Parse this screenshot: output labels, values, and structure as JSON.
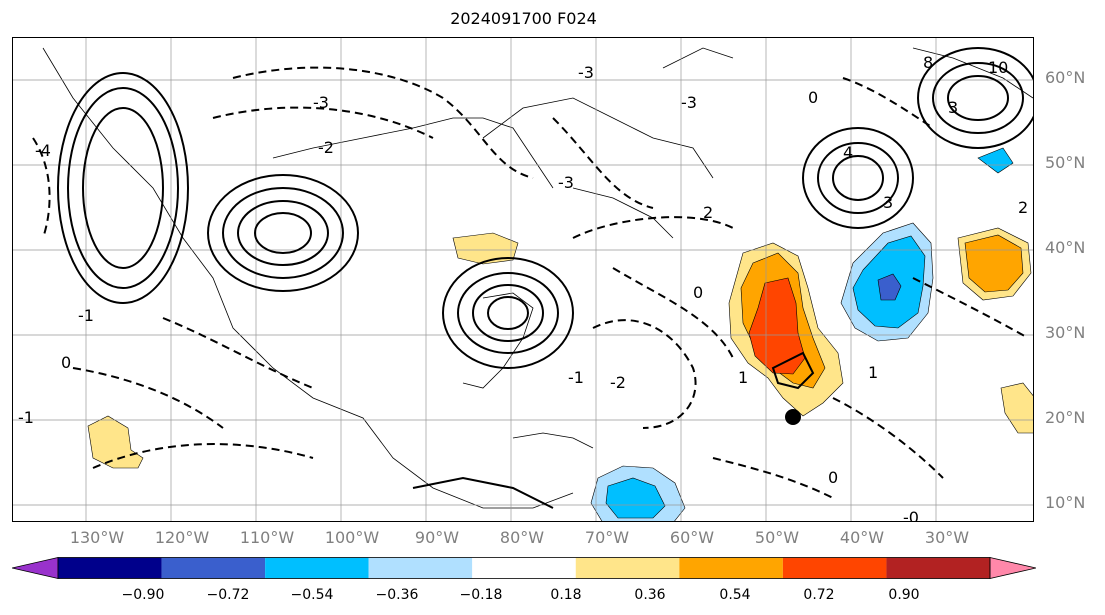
{
  "title": "2024091700 F024",
  "lat_labels": [
    "60°N",
    "50°N",
    "40°N",
    "30°N",
    "20°N",
    "10°N"
  ],
  "lon_labels": [
    "130°W",
    "120°W",
    "110°W",
    "100°W",
    "90°W",
    "80°W",
    "70°W",
    "60°W",
    "50°W",
    "40°W",
    "30°W"
  ],
  "colorbar": {
    "colors": [
      "#9932cc",
      "#00008b",
      "#3a5fcd",
      "#00bfff",
      "#b0e0ff",
      "#ffffff",
      "#ffe58a",
      "#ffa500",
      "#ff4500",
      "#b22222",
      "#ff88aa"
    ],
    "ticks": [
      "−0.90",
      "−0.72",
      "−0.54",
      "−0.36",
      "−0.18",
      "0.18",
      "0.36",
      "0.54",
      "0.72",
      "0.90"
    ]
  },
  "contour_labels": [
    "-4",
    "-3",
    "-3",
    "-3",
    "-3",
    "-2",
    "-2",
    "-1",
    "-1",
    "-1",
    "0",
    "0",
    "0",
    "0",
    "1",
    "1",
    "2",
    "2",
    "3",
    "3",
    "4",
    "8",
    "10",
    "-0"
  ]
}
